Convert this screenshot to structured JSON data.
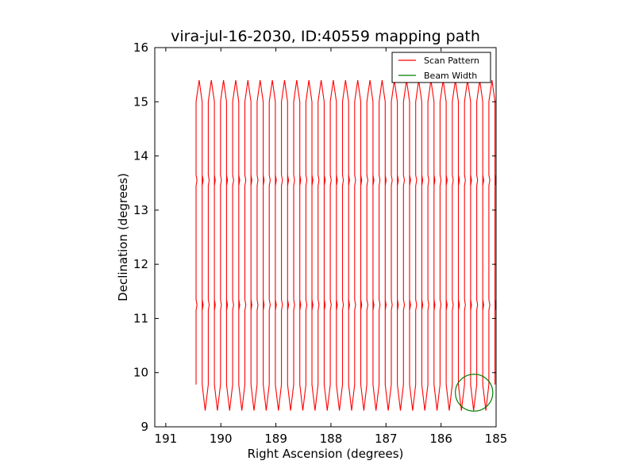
{
  "chart_data": {
    "type": "line",
    "title": "vira-jul-16-2030, ID:40559 mapping path",
    "xlabel": "Right Ascension (degrees)",
    "ylabel": "Declination (degrees)",
    "xlim": [
      191.2,
      185.0
    ],
    "ylim": [
      9,
      16
    ],
    "xticks": [
      191,
      190,
      189,
      188,
      187,
      186,
      185
    ],
    "yticks": [
      9,
      10,
      11,
      12,
      13,
      14,
      15,
      16
    ],
    "grid": false,
    "legend_position": "top-right",
    "series": [
      {
        "name": "Scan Pattern",
        "color": "#ff0000",
        "pattern": "boustrophedon",
        "ra_start": 190.45,
        "ra_end": 185.02,
        "num_legs": 50,
        "dec_low": 9.78,
        "dec_high": 15.0,
        "overshoot_low": 9.3,
        "overshoot_high": 15.4,
        "glitch_decs": [
          13.55,
          11.25
        ]
      },
      {
        "name": "Beam Width",
        "color": "#008000",
        "shape": "circle",
        "center_ra": 185.4,
        "center_dec": 9.63,
        "radius_deg": 0.34
      }
    ]
  }
}
